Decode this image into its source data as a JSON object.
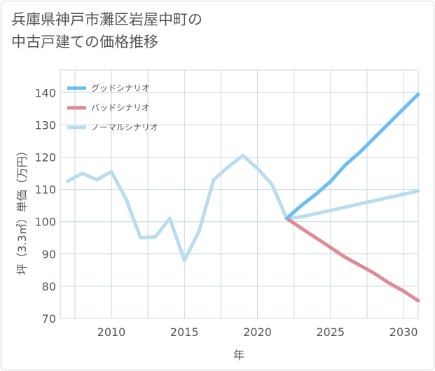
{
  "chart_data": {
    "type": "line",
    "title_lines": [
      "兵庫県神戸市灘区岩屋中町の",
      "中古戸建ての価格推移"
    ],
    "xlabel": "年",
    "ylabel": "坪（3.3㎡）単価（万円）",
    "xlim": [
      2006.5,
      2031
    ],
    "ylim": [
      70,
      147
    ],
    "xticks": [
      2010,
      2015,
      2020,
      2025,
      2030
    ],
    "yticks": [
      70,
      80,
      90,
      100,
      110,
      120,
      130,
      140
    ],
    "grid": true,
    "legend_position": "top-left",
    "series": [
      {
        "name": "グッドシナリオ",
        "color": "#6bbef2",
        "x": [
          2022,
          2023,
          2024,
          2025,
          2026,
          2027,
          2028,
          2029,
          2030,
          2031
        ],
        "values": [
          101,
          105,
          108.5,
          112.5,
          117.5,
          121.5,
          126,
          130.5,
          135,
          139.5
        ]
      },
      {
        "name": "バッドシナリオ",
        "color": "#e08a94",
        "x": [
          2022,
          2023,
          2024,
          2025,
          2026,
          2027,
          2028,
          2029,
          2030,
          2031
        ],
        "values": [
          101,
          98,
          95,
          92,
          89,
          86.5,
          84,
          81,
          78.5,
          75.5
        ]
      },
      {
        "name": "ノーマルシナリオ",
        "color": "#b9dcef",
        "x": [
          2007,
          2008,
          2009,
          2010,
          2011,
          2012,
          2013,
          2014,
          2015,
          2016,
          2017,
          2018,
          2019,
          2020,
          2021,
          2022,
          2023,
          2024,
          2025,
          2026,
          2027,
          2028,
          2029,
          2030,
          2031
        ],
        "values": [
          112.5,
          115,
          113,
          115.5,
          107,
          95,
          95.3,
          101,
          88,
          97,
          113,
          117,
          120.5,
          116.5,
          111.5,
          101,
          101.5,
          102.5,
          103.5,
          104.5,
          105.5,
          106.5,
          107.5,
          108.5,
          109.5
        ]
      }
    ]
  }
}
